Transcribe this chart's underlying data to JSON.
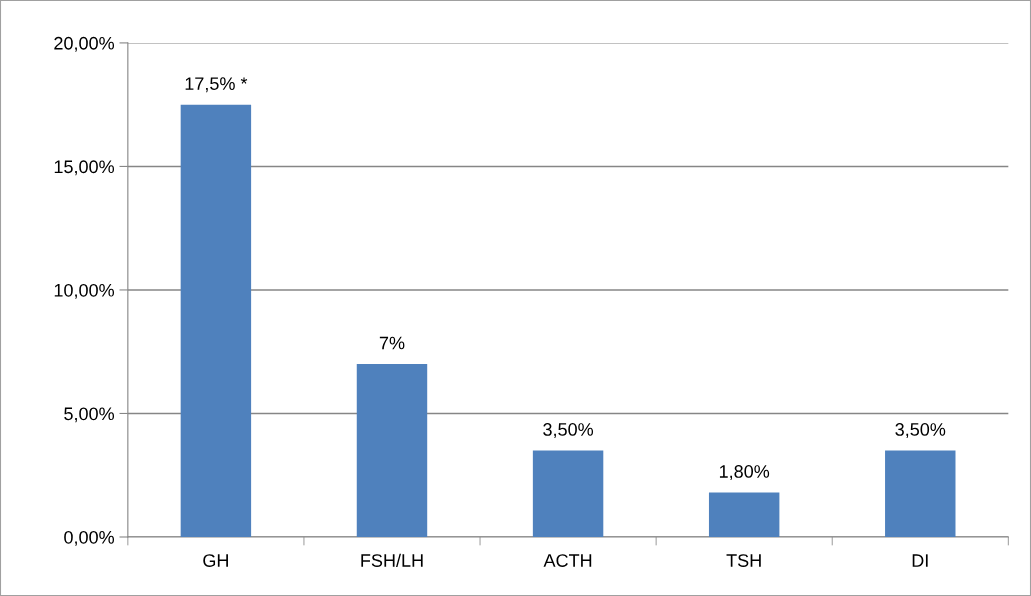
{
  "chart_data": {
    "type": "bar",
    "categories": [
      "GH",
      "FSH/LH",
      "ACTH",
      "TSH",
      "DI"
    ],
    "values": [
      17.5,
      7,
      3.5,
      1.8,
      3.5
    ],
    "value_labels": [
      "17,5% *",
      "7%",
      "3,50%",
      "1,80%",
      "3,50%"
    ],
    "color": "#4f81bd",
    "ylim": [
      0,
      20
    ],
    "yticks": [
      {
        "value": 0,
        "label": "0,00%"
      },
      {
        "value": 5,
        "label": "5,00%"
      },
      {
        "value": 10,
        "label": "10,00%"
      },
      {
        "value": 15,
        "label": "15,00%"
      },
      {
        "value": 20,
        "label": "20,00%"
      }
    ],
    "grid": "y",
    "legend": false
  }
}
